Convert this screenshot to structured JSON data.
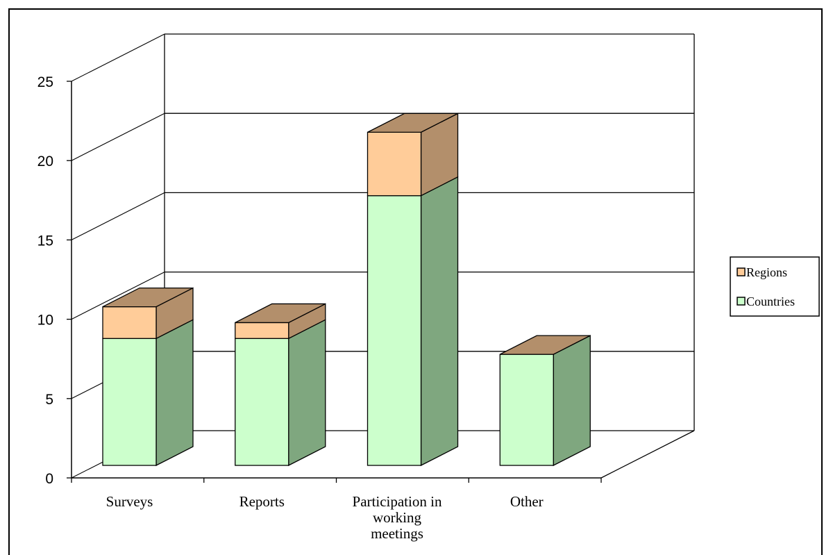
{
  "chart_data": {
    "type": "bar",
    "stacked": true,
    "three_d": true,
    "categories": [
      "Surveys",
      "Reports",
      "Participation in working meetings",
      "Other"
    ],
    "category_label_lines": [
      [
        "Surveys"
      ],
      [
        "Reports"
      ],
      [
        "Participation in",
        "working",
        "meetings"
      ],
      [
        "Other"
      ]
    ],
    "series": [
      {
        "name": "Countries",
        "values": [
          8,
          8,
          17,
          7
        ],
        "color": "#ccffcc",
        "side_color": "#7fa77f"
      },
      {
        "name": "Regions",
        "values": [
          2,
          1,
          4,
          0
        ],
        "color": "#ffcc99",
        "side_color": "#b38f6b"
      }
    ],
    "legend_order": [
      "Regions",
      "Countries"
    ],
    "legend_position": "right",
    "y_ticks": [
      "0",
      "5",
      "10",
      "15",
      "20",
      "25"
    ],
    "ylim": [
      0,
      25
    ],
    "grid": true,
    "title": "",
    "xlabel": "",
    "ylabel": ""
  }
}
